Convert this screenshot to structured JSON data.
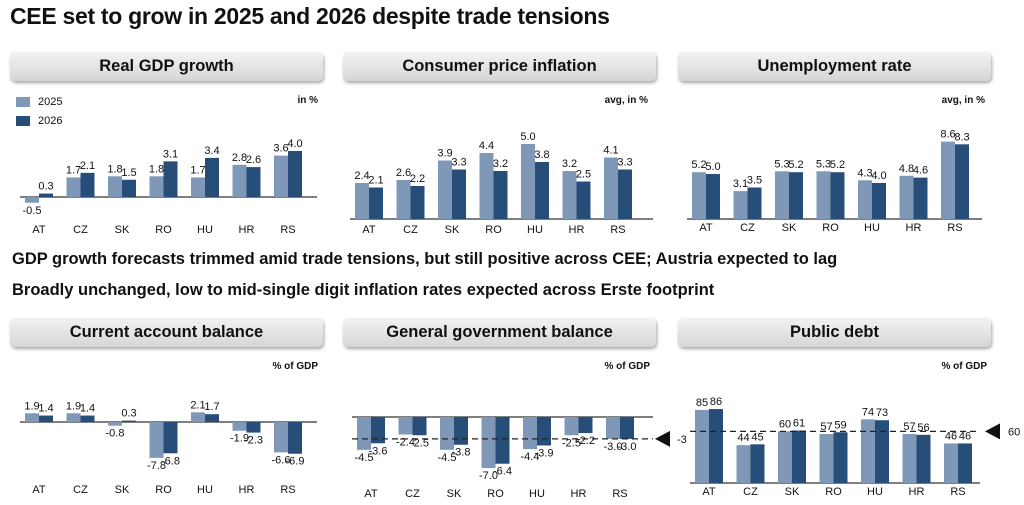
{
  "page_title": "CEE set to grow in 2025 and 2026 despite trade tensions",
  "legend": [
    {
      "label": "2025",
      "color": "#7f98b7"
    },
    {
      "label": "2026",
      "color": "#274e78"
    }
  ],
  "notes": [
    "GDP growth forecasts trimmed amid trade tensions, but still positive across CEE; Austria expected to lag",
    "Broadly unchanged, low to mid-single digit inflation rates expected across Erste footprint"
  ],
  "chart_data": [
    {
      "type": "bar",
      "title": "Real GDP growth",
      "unit": "in %",
      "categories": [
        "AT",
        "CZ",
        "SK",
        "RO",
        "HU",
        "HR",
        "RS"
      ],
      "series": [
        {
          "name": "2025",
          "values": [
            -0.5,
            1.7,
            1.8,
            1.8,
            1.7,
            2.8,
            3.6
          ]
        },
        {
          "name": "2026",
          "values": [
            0.3,
            2.1,
            1.5,
            3.1,
            3.4,
            2.6,
            4.0
          ]
        }
      ],
      "labels": [
        [
          "-0.5",
          "1.7",
          "1.8",
          "1.8",
          "1.7",
          "2.8",
          "3.6"
        ],
        [
          "0.3",
          "2.1",
          "1.5",
          "3.1",
          "3.4",
          "2.6",
          "4.0"
        ]
      ]
    },
    {
      "type": "bar",
      "title": "Consumer price inflation",
      "unit": "avg, in %",
      "categories": [
        "AT",
        "CZ",
        "SK",
        "RO",
        "HU",
        "HR",
        "RS"
      ],
      "series": [
        {
          "name": "2025",
          "values": [
            2.4,
            2.6,
            3.9,
            4.4,
            5.0,
            3.2,
            4.1
          ]
        },
        {
          "name": "2026",
          "values": [
            2.1,
            2.2,
            3.3,
            3.2,
            3.8,
            2.5,
            3.3
          ]
        }
      ],
      "labels": [
        [
          "2.4",
          "2.6",
          "3.9",
          "4.4",
          "5.0",
          "3.2",
          "4.1"
        ],
        [
          "2.1",
          "2.2",
          "3.3",
          "3.2",
          "3.8",
          "2.5",
          "3.3"
        ]
      ]
    },
    {
      "type": "bar",
      "title": "Unemployment rate",
      "unit": "avg, in %",
      "categories": [
        "AT",
        "CZ",
        "SK",
        "RO",
        "HU",
        "HR",
        "RS"
      ],
      "series": [
        {
          "name": "2025",
          "values": [
            5.2,
            3.1,
            5.3,
            5.3,
            4.3,
            4.8,
            8.6
          ]
        },
        {
          "name": "2026",
          "values": [
            5.0,
            3.5,
            5.2,
            5.2,
            4.0,
            4.6,
            8.3
          ]
        }
      ],
      "labels": [
        [
          "5.2",
          "3.1",
          "5.3",
          "5.3",
          "4.3",
          "4.8",
          "8.6"
        ],
        [
          "5.0",
          "3.5",
          "5.2",
          "5.2",
          "4.0",
          "4.6",
          "8.3"
        ]
      ]
    },
    {
      "type": "bar",
      "title": "Current account balance",
      "unit": "% of GDP",
      "categories": [
        "AT",
        "CZ",
        "SK",
        "RO",
        "HU",
        "HR",
        "RS"
      ],
      "series": [
        {
          "name": "2025",
          "values": [
            1.9,
            1.9,
            -0.8,
            -7.8,
            2.1,
            -1.9,
            -6.6
          ]
        },
        {
          "name": "2026",
          "values": [
            1.4,
            1.4,
            0.3,
            -6.8,
            1.7,
            -2.3,
            -6.9
          ]
        }
      ],
      "labels": [
        [
          "1.9",
          "1.9",
          "-0.8",
          "-7.8",
          "2.1",
          "-1.9",
          "-6.6"
        ],
        [
          "1.4",
          "1.4",
          "0.3",
          "-6.8",
          "1.7",
          "-2.3",
          "-6.9"
        ]
      ]
    },
    {
      "type": "bar",
      "title": "General government balance",
      "unit": "% of GDP",
      "categories": [
        "AT",
        "CZ",
        "SK",
        "RO",
        "HU",
        "HR",
        "RS"
      ],
      "series": [
        {
          "name": "2025",
          "values": [
            -4.5,
            -2.4,
            -4.5,
            -7.0,
            -4.4,
            -2.5,
            -3.0
          ]
        },
        {
          "name": "2026",
          "values": [
            -3.6,
            -2.5,
            -3.8,
            -6.4,
            -3.9,
            -2.2,
            -3.0
          ]
        }
      ],
      "labels": [
        [
          "-4.5",
          "-2.4",
          "-4.5",
          "-7.0",
          "-4.4",
          "-2.5",
          "-3.0"
        ],
        [
          "-3.6",
          "-2.5",
          "-3.8",
          "-6.4",
          "-3.9",
          "-2.2",
          "-3.0"
        ]
      ],
      "reference": {
        "value": -3,
        "label": "-3"
      }
    },
    {
      "type": "bar",
      "title": "Public debt",
      "unit": "% of GDP",
      "categories": [
        "AT",
        "CZ",
        "SK",
        "RO",
        "HU",
        "HR",
        "RS"
      ],
      "series": [
        {
          "name": "2025",
          "values": [
            85,
            44,
            60,
            57,
            74,
            57,
            46
          ]
        },
        {
          "name": "2026",
          "values": [
            86,
            45,
            61,
            59,
            73,
            56,
            46
          ]
        }
      ],
      "labels": [
        [
          "85",
          "44",
          "60",
          "57",
          "74",
          "57",
          "46"
        ],
        [
          "86",
          "45",
          "61",
          "59",
          "73",
          "56",
          "46"
        ]
      ],
      "reference": {
        "value": 60,
        "label": "60"
      }
    }
  ]
}
